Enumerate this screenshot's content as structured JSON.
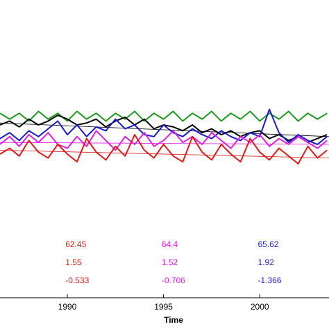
{
  "chart_data": {
    "type": "line",
    "title": "",
    "xlabel": "Time",
    "ylabel": "",
    "xlim": [
      1986.5,
      2003.6
    ],
    "ylim": [
      0,
      1
    ],
    "grid": false,
    "x_ticks": [
      "1990",
      "1995",
      "2000"
    ],
    "series": [
      {
        "color": "#1a9a1a",
        "x": [
          1986.5,
          1987.0,
          1987.5,
          1988.0,
          1988.5,
          1989.0,
          1989.5,
          1990.0,
          1990.5,
          1991.0,
          1991.5,
          1992.0,
          1992.5,
          1993.0,
          1993.5,
          1994.0,
          1994.5,
          1995.0,
          1995.5,
          1996.0,
          1996.5,
          1997.0,
          1997.5,
          1998.0,
          1998.5,
          1999.0,
          1999.5,
          2000.0,
          2000.5,
          2001.0,
          2001.5,
          2002.0,
          2002.5,
          2003.0,
          2003.5
        ],
        "values": [
          0.56,
          0.53,
          0.56,
          0.52,
          0.57,
          0.53,
          0.56,
          0.52,
          0.57,
          0.53,
          0.56,
          0.52,
          0.56,
          0.53,
          0.57,
          0.52,
          0.56,
          0.53,
          0.57,
          0.52,
          0.56,
          0.53,
          0.57,
          0.52,
          0.56,
          0.53,
          0.57,
          0.52,
          0.56,
          0.53,
          0.57,
          0.52,
          0.56,
          0.53,
          0.56
        ]
      },
      {
        "color": "#000000",
        "x": [
          1986.5,
          1987.0,
          1987.5,
          1988.0,
          1988.5,
          1989.0,
          1989.5,
          1990.0,
          1990.5,
          1991.0,
          1991.5,
          1992.0,
          1992.5,
          1993.0,
          1993.5,
          1994.0,
          1994.5,
          1995.0,
          1995.5,
          1996.0,
          1996.5,
          1997.0,
          1997.5,
          1998.0,
          1998.5,
          1999.0,
          1999.5,
          2000.0,
          2000.5,
          2001.0,
          2001.5,
          2002.0,
          2002.5,
          2003.0,
          2003.5
        ],
        "values": [
          0.5,
          0.52,
          0.49,
          0.53,
          0.5,
          0.52,
          0.55,
          0.53,
          0.5,
          0.51,
          0.53,
          0.49,
          0.52,
          0.54,
          0.5,
          0.53,
          0.48,
          0.5,
          0.49,
          0.47,
          0.5,
          0.46,
          0.48,
          0.45,
          0.47,
          0.44,
          0.46,
          0.47,
          0.43,
          0.45,
          0.42,
          0.44,
          0.41,
          0.43,
          0.45
        ]
      },
      {
        "color": "#1a1acc",
        "x": [
          1986.5,
          1987.0,
          1987.5,
          1988.0,
          1988.5,
          1989.0,
          1989.5,
          1990.0,
          1990.5,
          1991.0,
          1991.5,
          1992.0,
          1992.5,
          1993.0,
          1993.5,
          1994.0,
          1994.5,
          1995.0,
          1995.5,
          1996.0,
          1996.5,
          1997.0,
          1997.5,
          1998.0,
          1998.5,
          1999.0,
          1999.5,
          2000.0,
          2000.5,
          2001.0,
          2001.5,
          2002.0,
          2002.5,
          2003.0,
          2003.5
        ],
        "values": [
          0.43,
          0.46,
          0.42,
          0.47,
          0.44,
          0.48,
          0.52,
          0.45,
          0.5,
          0.44,
          0.49,
          0.47,
          0.53,
          0.48,
          0.5,
          0.45,
          0.44,
          0.5,
          0.46,
          0.44,
          0.48,
          0.45,
          0.43,
          0.47,
          0.44,
          0.42,
          0.46,
          0.44,
          0.58,
          0.46,
          0.41,
          0.45,
          0.42,
          0.4,
          0.44
        ]
      },
      {
        "color": "#e020e0",
        "x": [
          1986.5,
          1987.0,
          1987.5,
          1988.0,
          1988.5,
          1989.0,
          1989.5,
          1990.0,
          1990.5,
          1991.0,
          1991.5,
          1992.0,
          1992.5,
          1993.0,
          1993.5,
          1994.0,
          1994.5,
          1995.0,
          1995.5,
          1996.0,
          1996.5,
          1997.0,
          1997.5,
          1998.0,
          1998.5,
          1999.0,
          1999.5,
          2000.0,
          2000.5,
          2001.0,
          2001.5,
          2002.0,
          2002.5,
          2003.0,
          2003.5
        ],
        "values": [
          0.4,
          0.44,
          0.39,
          0.45,
          0.41,
          0.46,
          0.4,
          0.38,
          0.44,
          0.39,
          0.47,
          0.42,
          0.37,
          0.44,
          0.4,
          0.46,
          0.39,
          0.42,
          0.47,
          0.41,
          0.44,
          0.4,
          0.46,
          0.42,
          0.38,
          0.44,
          0.41,
          0.45,
          0.39,
          0.43,
          0.4,
          0.44,
          0.41,
          0.38,
          0.42
        ]
      },
      {
        "color": "#e01a1a",
        "x": [
          1986.5,
          1987.0,
          1987.5,
          1988.0,
          1988.5,
          1989.0,
          1989.5,
          1990.0,
          1990.5,
          1991.0,
          1991.5,
          1992.0,
          1992.5,
          1993.0,
          1993.5,
          1994.0,
          1994.5,
          1995.0,
          1995.5,
          1996.0,
          1996.5,
          1997.0,
          1997.5,
          1998.0,
          1998.5,
          1999.0,
          1999.5,
          2000.0,
          2000.5,
          2001.0,
          2001.5,
          2002.0,
          2002.5,
          2003.0,
          2003.5
        ],
        "values": [
          0.35,
          0.38,
          0.34,
          0.42,
          0.36,
          0.33,
          0.4,
          0.35,
          0.31,
          0.43,
          0.36,
          0.32,
          0.39,
          0.34,
          0.45,
          0.37,
          0.33,
          0.4,
          0.34,
          0.31,
          0.44,
          0.36,
          0.32,
          0.4,
          0.35,
          0.31,
          0.43,
          0.36,
          0.32,
          0.38,
          0.34,
          0.3,
          0.39,
          0.33,
          0.37
        ]
      }
    ],
    "trend_lines": [
      {
        "color": "#000000",
        "x": [
          1986.5,
          2003.6
        ],
        "values": [
          0.51,
          0.44
        ]
      },
      {
        "color": "#e020e0",
        "x": [
          1986.5,
          2003.6
        ],
        "values": [
          0.41,
          0.4
        ]
      },
      {
        "color": "#e01a1a",
        "x": [
          1986.5,
          2003.6
        ],
        "values": [
          0.37,
          0.33
        ]
      }
    ],
    "annotations": [
      {
        "color": "#e01a1a",
        "x": 1989.9,
        "lines": [
          "62.45",
          "1.55",
          "-0.533"
        ]
      },
      {
        "color": "#e020e0",
        "x": 1994.9,
        "lines": [
          "64.4",
          "1.52",
          "-0.706"
        ]
      },
      {
        "color": "#1a1acc",
        "x": 1999.9,
        "lines": [
          "65.62",
          "1.92",
          "-1.366"
        ]
      }
    ]
  }
}
